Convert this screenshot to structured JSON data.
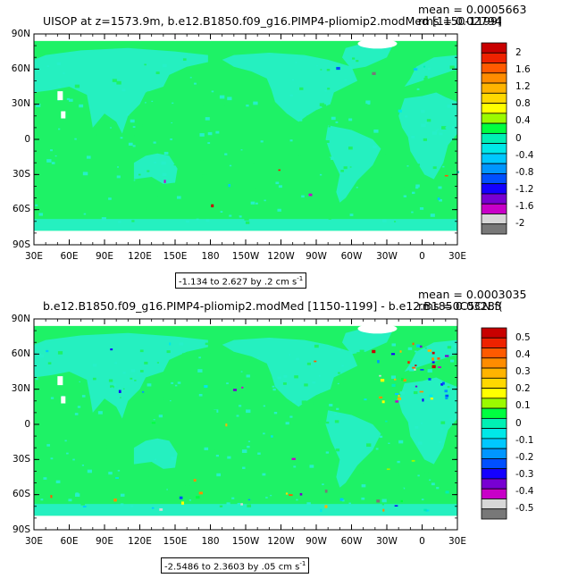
{
  "panels": [
    {
      "title": "UISOP at z=1573.9m, b.e12.B1850.f09_g16.PIMP4-pliomip2.modMed [1150-1199]",
      "mean": "mean = 0.0005663",
      "rms": "rms = 0.02794",
      "range": "-1.134 to 2.627 by .2 cm s",
      "range_exp": "-1",
      "lat_labels": [
        "90N",
        "60N",
        "30N",
        "0",
        "30S",
        "60S",
        "90S"
      ],
      "lon_labels": [
        "30E",
        "60E",
        "90E",
        "120E",
        "150E",
        "180",
        "150W",
        "120W",
        "90W",
        "60W",
        "30W",
        "0",
        "30E"
      ],
      "colorbar_labels": [
        "2",
        "1.6",
        "1.2",
        "0.8",
        "0.4",
        "0",
        "-0.4",
        "-0.8",
        "-1.2",
        "-1.6",
        "-2"
      ],
      "colorbar_colors": [
        "#c80000",
        "#ee2200",
        "#ff5a00",
        "#ff8c00",
        "#ffb400",
        "#ffd800",
        "#ffff00",
        "#9bfa00",
        "#00ff40",
        "#00f0b4",
        "#00e8e8",
        "#00c8ff",
        "#0096ff",
        "#0050ff",
        "#1400ff",
        "#7800d2",
        "#c800c8",
        "#d7d7d7",
        "#787878"
      ]
    },
    {
      "title": "b.e12.B1850.f09_g16.PIMP4-pliomip2.modMed [1150-1199] - b.e12.B1850C5CN.f(",
      "mean": "mean = 0.0003035",
      "rms": "rms = 0.03283",
      "range": "-2.5486 to 2.3603 by .05 cm s",
      "range_exp": "-1",
      "lat_labels": [
        "90N",
        "60N",
        "30N",
        "0",
        "30S",
        "60S",
        "90S"
      ],
      "lon_labels": [
        "30E",
        "60E",
        "90E",
        "120E",
        "150E",
        "180",
        "150W",
        "120W",
        "90W",
        "60W",
        "30W",
        "0",
        "30E"
      ],
      "colorbar_labels": [
        "0.5",
        "0.4",
        "0.3",
        "0.2",
        "0.1",
        "0",
        "-0.1",
        "-0.2",
        "-0.3",
        "-0.4",
        "-0.5"
      ],
      "colorbar_colors": [
        "#c80000",
        "#ee2200",
        "#ff5a00",
        "#ff8c00",
        "#ffb400",
        "#ffd800",
        "#ffff00",
        "#9bfa00",
        "#00ff40",
        "#00f0b4",
        "#00e8e8",
        "#00c8ff",
        "#0096ff",
        "#0050ff",
        "#1400ff",
        "#7800d2",
        "#c800c8",
        "#d7d7d7",
        "#787878"
      ]
    }
  ],
  "colors": {
    "land": "#1ef266",
    "ocean": "#26f0c8",
    "ice": "#ffffff"
  }
}
